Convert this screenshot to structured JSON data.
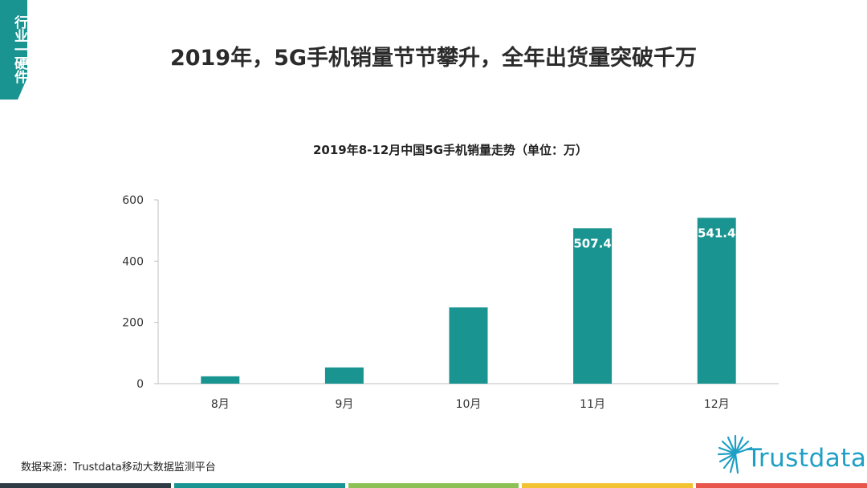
{
  "section_tag": "行业一硬件",
  "page_title": "2019年，5G手机销量节节攀升，全年出货量突破千万",
  "source_text": "数据来源：Trustdata移动大数据监测平台",
  "logo_text": "Trustdata",
  "colors": {
    "accent": "#1a9491",
    "bar": "#1a9491",
    "footer": [
      "#2e3b44",
      "#1a9491",
      "#8dc155",
      "#f2c233",
      "#e8564b"
    ]
  },
  "chart_data": {
    "type": "bar",
    "title": "2019年8-12月中国5G手机销量走势（单位：万）",
    "categories": [
      "8月",
      "9月",
      "10月",
      "11月",
      "12月"
    ],
    "values": [
      24,
      53,
      249,
      507.4,
      541.4
    ],
    "data_labels": [
      "",
      "",
      "",
      "507.4",
      "541.4"
    ],
    "ylim": [
      0,
      600
    ],
    "yticks": [
      0,
      200,
      400,
      600
    ],
    "xlabel": "",
    "ylabel": "",
    "grid": false,
    "legend": "none"
  }
}
